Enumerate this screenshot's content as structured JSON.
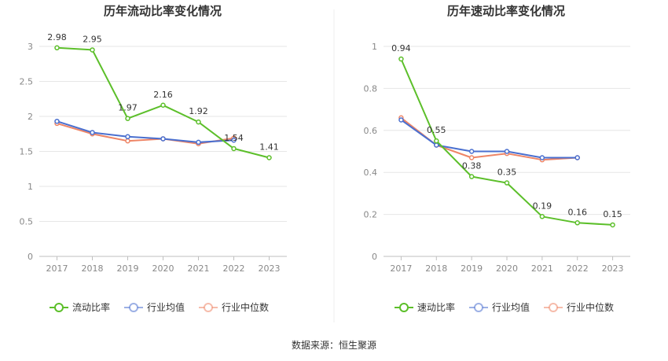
{
  "source": "数据来源：恒生聚源",
  "colors": {
    "main": "#5cbf2a",
    "avg": "#4a6fcf",
    "median": "#ee8566",
    "grid": "#e6e6e6",
    "axis": "#bfbfbf"
  },
  "chart_data": [
    {
      "type": "line",
      "title": "历年流动比率变化情况",
      "categories": [
        "2017",
        "2018",
        "2019",
        "2020",
        "2021",
        "2022",
        "2023"
      ],
      "ylim": [
        0,
        3
      ],
      "yticks": [
        "0",
        "0.5",
        "1",
        "1.5",
        "2",
        "2.5",
        "3"
      ],
      "ytick_values": [
        0,
        0.5,
        1,
        1.5,
        2,
        2.5,
        3
      ],
      "series": [
        {
          "name": "流动比率",
          "values": [
            2.98,
            2.95,
            1.97,
            2.16,
            1.92,
            1.54,
            1.41
          ],
          "labels": [
            "2.98",
            "2.95",
            "1.97",
            "2.16",
            "1.92",
            "1.54",
            "1.41"
          ]
        },
        {
          "name": "行业均值",
          "values": [
            1.93,
            1.77,
            1.71,
            1.68,
            1.63,
            1.66,
            null
          ]
        },
        {
          "name": "行业中位数",
          "values": [
            1.9,
            1.75,
            1.65,
            1.68,
            1.61,
            1.69,
            null
          ]
        }
      ]
    },
    {
      "type": "line",
      "title": "历年速动比率变化情况",
      "categories": [
        "2017",
        "2018",
        "2019",
        "2020",
        "2021",
        "2022",
        "2023"
      ],
      "ylim": [
        0,
        1
      ],
      "yticks": [
        "0",
        "0.2",
        "0.4",
        "0.6",
        "0.8",
        "1"
      ],
      "ytick_values": [
        0,
        0.2,
        0.4,
        0.6,
        0.8,
        1
      ],
      "series": [
        {
          "name": "速动比率",
          "values": [
            0.94,
            0.55,
            0.38,
            0.35,
            0.19,
            0.16,
            0.15
          ],
          "labels": [
            "0.94",
            "0.55",
            "0.38",
            "0.35",
            "0.19",
            "0.16",
            "0.15"
          ]
        },
        {
          "name": "行业均值",
          "values": [
            0.65,
            0.53,
            0.5,
            0.5,
            0.47,
            0.47,
            null
          ]
        },
        {
          "name": "行业中位数",
          "values": [
            0.66,
            0.53,
            0.47,
            0.49,
            0.46,
            0.47,
            null
          ]
        }
      ]
    }
  ]
}
